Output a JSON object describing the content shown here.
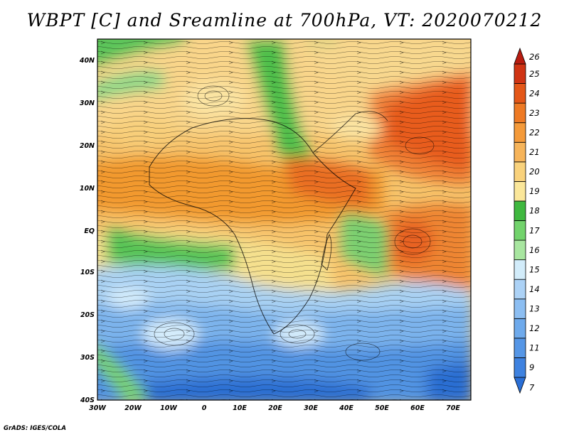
{
  "title": "WBPT [C] and Sreamline at 700hPa, VT: 2020070212",
  "footer": "GrADS: IGES/COLA",
  "map": {
    "lon_labels": [
      "30W",
      "20W",
      "10W",
      "0",
      "10E",
      "20E",
      "30E",
      "40E",
      "50E",
      "60E",
      "70E"
    ],
    "lat_labels": [
      "40N",
      "30N",
      "20N",
      "10N",
      "EQ",
      "10S",
      "20S",
      "30S",
      "40S"
    ],
    "lon_range": [
      -30,
      75
    ],
    "lat_range": [
      -40,
      45
    ],
    "variable": "WBPT",
    "units": "C",
    "level": "700hPa",
    "valid_time": "2020070212"
  },
  "colorbar": {
    "levels": [
      "7",
      "9",
      "11",
      "12",
      "13",
      "14",
      "15",
      "16",
      "17",
      "18",
      "19",
      "20",
      "21",
      "22",
      "23",
      "24",
      "25",
      "26"
    ],
    "colors": [
      "#2a6fd6",
      "#3e82e0",
      "#5596e6",
      "#6eaaec",
      "#8cbef2",
      "#acd2f6",
      "#d2ecfa",
      "#a8e6a0",
      "#72d36c",
      "#3fb83f",
      "#fbe79a",
      "#f9d27c",
      "#f6b45a",
      "#f49a3a",
      "#ee7a24",
      "#e45718",
      "#d03414",
      "#b81c10"
    ]
  }
}
